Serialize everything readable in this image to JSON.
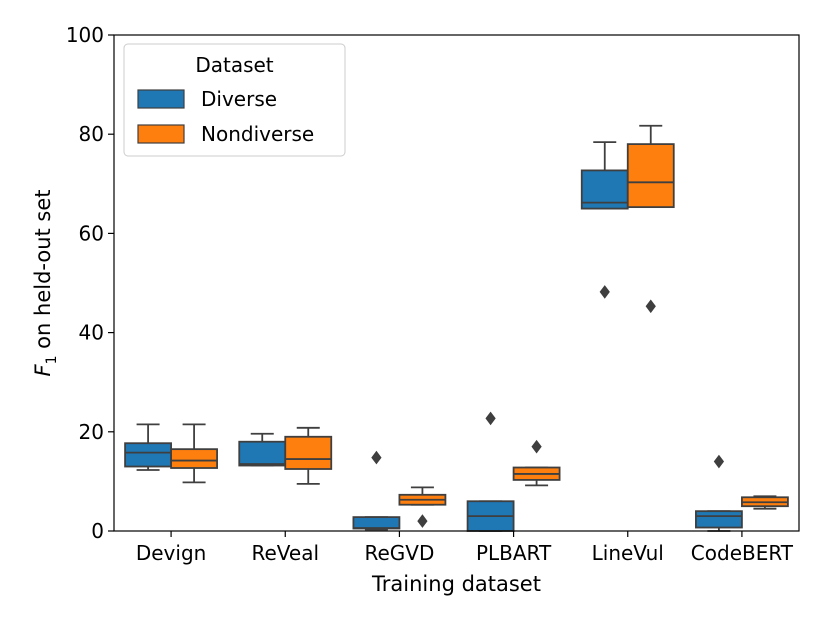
{
  "chart_data": {
    "type": "boxplot",
    "title": "",
    "xlabel": "Training dataset",
    "ylabel_prefix": "F",
    "ylabel_subscript": "1",
    "ylabel_suffix": " on held-out set",
    "ylim": [
      0,
      100
    ],
    "yticks": [
      0,
      20,
      40,
      60,
      80,
      100
    ],
    "categories": [
      "Devign",
      "ReVeal",
      "ReGVD",
      "PLBART",
      "LineVul",
      "CodeBERT"
    ],
    "legend": {
      "title": "Dataset",
      "position": "top-left"
    },
    "series": [
      {
        "name": "Diverse",
        "color": "#1f77b4",
        "boxes": [
          {
            "whislo": 12.3,
            "q1": 13.0,
            "med": 15.8,
            "q3": 17.7,
            "whishi": 21.5,
            "fliers": []
          },
          {
            "whislo": 13.2,
            "q1": 13.2,
            "med": 13.5,
            "q3": 18.0,
            "whishi": 19.6,
            "fliers": []
          },
          {
            "whislo": 0.3,
            "q1": 0.5,
            "med": 0.6,
            "q3": 2.8,
            "whishi": 2.8,
            "fliers": [
              14.8
            ]
          },
          {
            "whislo": 0.0,
            "q1": 0.0,
            "med": 3.0,
            "q3": 6.0,
            "whishi": 6.0,
            "fliers": [
              22.7
            ]
          },
          {
            "whislo": 65.0,
            "q1": 65.0,
            "med": 66.2,
            "q3": 72.7,
            "whishi": 78.4,
            "fliers": [
              48.2
            ]
          },
          {
            "whislo": 0.0,
            "q1": 0.7,
            "med": 3.0,
            "q3": 4.0,
            "whishi": 4.0,
            "fliers": [
              14.0
            ]
          }
        ]
      },
      {
        "name": "Nondiverse",
        "color": "#ff7f0e",
        "boxes": [
          {
            "whislo": 9.8,
            "q1": 12.7,
            "med": 14.2,
            "q3": 16.5,
            "whishi": 21.5,
            "fliers": []
          },
          {
            "whislo": 9.5,
            "q1": 12.5,
            "med": 14.5,
            "q3": 19.0,
            "whishi": 20.8,
            "fliers": []
          },
          {
            "whislo": 5.3,
            "q1": 5.3,
            "med": 6.3,
            "q3": 7.3,
            "whishi": 8.8,
            "fliers": [
              2.0
            ]
          },
          {
            "whislo": 9.2,
            "q1": 10.3,
            "med": 11.5,
            "q3": 12.8,
            "whishi": 12.8,
            "fliers": [
              17.0
            ]
          },
          {
            "whislo": 65.3,
            "q1": 65.3,
            "med": 70.3,
            "q3": 78.0,
            "whishi": 81.7,
            "fliers": [
              45.3
            ]
          },
          {
            "whislo": 4.5,
            "q1": 5.0,
            "med": 5.8,
            "q3": 6.8,
            "whishi": 7.0,
            "fliers": []
          }
        ]
      }
    ]
  }
}
